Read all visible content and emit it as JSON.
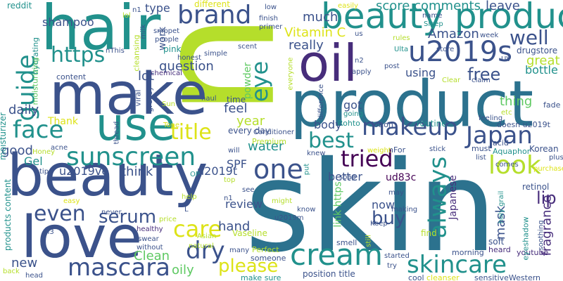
{
  "title": "Word cloud",
  "palette": {
    "lime": "#b5de2b",
    "yellow": "#dde318",
    "green": "#5ec962",
    "teal": "#21918c",
    "blue": "#2c728e",
    "indigo": "#3b528b",
    "purple": "#472d7b",
    "dark": "#440154"
  },
  "words": [
    {
      "text": "skin",
      "color": "#2c728e"
    },
    {
      "text": "n",
      "color": "#b5de2b"
    },
    {
      "text": "product",
      "color": "#2c728e"
    },
    {
      "text": "beauty",
      "color": "#3b528b"
    },
    {
      "text": "make",
      "color": "#3b528b"
    },
    {
      "text": "hair",
      "color": "#21918c"
    },
    {
      "text": "use",
      "color": "#21918c"
    },
    {
      "text": "love",
      "color": "#3b528b"
    },
    {
      "text": "oil",
      "color": "#472d7b"
    },
    {
      "text": "beauty product",
      "color": "#21918c"
    },
    {
      "text": "cream",
      "color": "#21918c"
    },
    {
      "text": "u2019s",
      "color": "#3b528b"
    },
    {
      "text": "sunscreen",
      "color": "#21918c"
    },
    {
      "text": "makeup",
      "color": "#3b528b"
    },
    {
      "text": "skincare",
      "color": "#21918c"
    },
    {
      "text": "mascara",
      "color": "#3b528b"
    },
    {
      "text": "brand",
      "color": "#3b528b"
    },
    {
      "text": "face",
      "color": "#21918c"
    },
    {
      "text": "look",
      "color": "#b5de2b"
    },
    {
      "text": "Japan",
      "color": "#3b528b"
    },
    {
      "text": "one",
      "color": "#3b528b"
    },
    {
      "text": "always",
      "color": "#21918c"
    },
    {
      "text": "tried",
      "color": "#440154"
    },
    {
      "text": "care",
      "color": "#dde318"
    },
    {
      "text": "dry",
      "color": "#3b528b"
    },
    {
      "text": "guide",
      "color": "#21918c"
    },
    {
      "text": "https",
      "color": "#21918c"
    },
    {
      "text": "best",
      "color": "#21918c"
    },
    {
      "text": "title",
      "color": "#dde318"
    },
    {
      "text": "even",
      "color": "#3b528b"
    },
    {
      "text": "serum",
      "color": "#3b528b"
    },
    {
      "text": "eye",
      "color": "#21918c"
    },
    {
      "text": "well",
      "color": "#3b528b"
    },
    {
      "text": "free",
      "color": "#3b528b"
    },
    {
      "text": "please",
      "color": "#dde318"
    },
    {
      "text": "buy",
      "color": "#3b528b"
    },
    {
      "text": "lip",
      "color": "#472d7b"
    },
    {
      "text": "score comments",
      "color": "#21918c"
    },
    {
      "text": "mask",
      "color": "#3b528b"
    },
    {
      "text": "fragrance",
      "color": "#472d7b"
    },
    {
      "text": "Amazon",
      "color": "#3b528b"
    },
    {
      "text": "oily",
      "color": "#5ec962"
    },
    {
      "text": "Clean",
      "color": "#5ec962"
    },
    {
      "text": "new",
      "color": "#3b528b"
    },
    {
      "text": "review",
      "color": "#3b528b"
    },
    {
      "text": "hand",
      "color": "#3b528b"
    },
    {
      "text": "water",
      "color": "#21918c"
    },
    {
      "text": "good",
      "color": "#3b528b"
    },
    {
      "text": "daily",
      "color": "#3b528b"
    },
    {
      "text": "Vitamin C",
      "color": "#dde318"
    },
    {
      "text": "question",
      "color": "#3b528b"
    },
    {
      "text": "lot",
      "color": "#3b528b"
    },
    {
      "text": "much",
      "color": "#3b528b"
    },
    {
      "text": "really",
      "color": "#3b528b"
    },
    {
      "text": "leave",
      "color": "#3b528b"
    },
    {
      "text": "thing",
      "color": "#5ec962"
    },
    {
      "text": "great",
      "color": "#b5de2b"
    },
    {
      "text": "bottle",
      "color": "#21918c"
    },
    {
      "text": "feel",
      "color": "#3b528b"
    },
    {
      "text": "year",
      "color": "#b5de2b"
    },
    {
      "text": "think",
      "color": "#3b528b"
    },
    {
      "text": "u2019ve",
      "color": "#3b528b"
    },
    {
      "text": "u2019t",
      "color": "#3b528b"
    },
    {
      "text": "body",
      "color": "#3b528b"
    },
    {
      "text": "got",
      "color": "#3b528b"
    },
    {
      "text": "better",
      "color": "#3b528b"
    },
    {
      "text": "using",
      "color": "#3b528b"
    },
    {
      "text": "now",
      "color": "#3b528b"
    },
    {
      "text": "Japanese",
      "color": "#472d7b"
    },
    {
      "text": "shampoo",
      "color": "#3b528b"
    },
    {
      "text": "type",
      "color": "#3b528b"
    },
    {
      "text": "Gel",
      "color": "#21918c"
    },
    {
      "text": "SPF",
      "color": "#3b528b"
    },
    {
      "text": "Thank",
      "color": "#dde318"
    },
    {
      "text": "ud83c",
      "color": "#440154"
    },
    {
      "text": "link https",
      "color": "#5ec962"
    },
    {
      "text": "work",
      "color": "#3b528b"
    },
    {
      "text": "powder",
      "color": "#5ec962"
    },
    {
      "text": "every day",
      "color": "#3b528b"
    },
    {
      "text": "time",
      "color": "#3b528b"
    },
    {
      "text": "different",
      "color": "#dde318"
    },
    {
      "text": "reddit",
      "color": "#21918c"
    },
    {
      "text": "pink",
      "color": "#21918c"
    },
    {
      "text": "cleansing",
      "color": "#b5de2b"
    },
    {
      "text": "drugstore",
      "color": "#3b528b"
    },
    {
      "text": "retinol",
      "color": "#3b528b"
    },
    {
      "text": "moisturizer",
      "color": "#21918c"
    },
    {
      "text": "products content",
      "color": "#21918c"
    },
    {
      "text": "position title",
      "color": "#3b528b"
    },
    {
      "text": "Vaseline",
      "color": "#b5de2b"
    },
    {
      "text": "Korean",
      "color": "#3b528b"
    },
    {
      "text": "Premium",
      "color": "#b5de2b"
    },
    {
      "text": "Rohto",
      "color": "#21918c"
    },
    {
      "text": "routine",
      "color": "#21918c"
    },
    {
      "text": "lotion",
      "color": "#3b528b"
    },
    {
      "text": "Aquaphor",
      "color": "#21918c"
    },
    {
      "text": "doesn u2019t",
      "color": "#3b528b"
    },
    {
      "text": "make sure",
      "color": "#21918c"
    },
    {
      "text": "someone",
      "color": "#3b528b"
    },
    {
      "text": "Perfect",
      "color": "#b5de2b"
    },
    {
      "text": "smell",
      "color": "#3b528b"
    },
    {
      "text": "find",
      "color": "#b5de2b"
    },
    {
      "text": "soft",
      "color": "#3b528b"
    },
    {
      "text": "heard",
      "color": "#472d7b"
    },
    {
      "text": "youtube",
      "color": "#472d7b"
    },
    {
      "text": "eyeshadow",
      "color": "#21918c"
    },
    {
      "text": "fade",
      "color": "#3b528b"
    },
    {
      "text": "sensitiveWestern",
      "color": "#3b528b"
    },
    {
      "text": "cleanser",
      "color": "#dde318"
    },
    {
      "text": "cool",
      "color": "#3b528b"
    },
    {
      "text": "morning",
      "color": "#3b528b"
    },
    {
      "text": "holy grail",
      "color": "#21918c"
    },
    {
      "text": "purchase",
      "color": "#dde318"
    },
    {
      "text": "Sleep",
      "color": "#21918c"
    },
    {
      "text": "Ulta",
      "color": "#21918c"
    },
    {
      "text": "nFor",
      "color": "#3b528b"
    },
    {
      "text": "acid",
      "color": "#3b528b"
    },
    {
      "text": "must",
      "color": "#3b528b"
    },
    {
      "text": "plus",
      "color": "#3b528b"
    },
    {
      "text": "stick",
      "color": "#3b528b"
    },
    {
      "text": "weight",
      "color": "#dde318"
    },
    {
      "text": "knew",
      "color": "#3b528b"
    },
    {
      "text": "put",
      "color": "#21918c"
    },
    {
      "text": "going",
      "color": "#21918c"
    },
    {
      "text": "feeling",
      "color": "#3b528b"
    },
    {
      "text": "hydrating",
      "color": "#21918c"
    },
    {
      "text": "moisturizing",
      "color": "#5ec962"
    },
    {
      "text": "content",
      "color": "#3b528b"
    },
    {
      "text": "viral",
      "color": "#3b528b"
    },
    {
      "text": "greasy",
      "color": "#3b528b"
    },
    {
      "text": "thread",
      "color": "#3b528b"
    },
    {
      "text": "Tone",
      "color": "#dde318"
    },
    {
      "text": "Sun",
      "color": "#b5de2b"
    },
    {
      "text": "Honey",
      "color": "#b5de2b"
    },
    {
      "text": "acne",
      "color": "#3b528b"
    },
    {
      "text": "tip",
      "color": "#3b528b"
    },
    {
      "text": "OP",
      "color": "#21918c"
    },
    {
      "text": "help",
      "color": "#b5de2b"
    },
    {
      "text": "easy",
      "color": "#dde318"
    },
    {
      "text": "never",
      "color": "#3b528b"
    },
    {
      "text": "healthy",
      "color": "#472d7b"
    },
    {
      "text": "price",
      "color": "#b5de2b"
    },
    {
      "text": "swear",
      "color": "#3b528b"
    },
    {
      "text": "without",
      "color": "#3b528b"
    },
    {
      "text": "natural",
      "color": "#b5de2b"
    },
    {
      "text": "many",
      "color": "#3b528b"
    },
    {
      "text": "head",
      "color": "#3b528b"
    },
    {
      "text": "back",
      "color": "#b5de2b"
    },
    {
      "text": "n3",
      "color": "#3b528b"
    },
    {
      "text": "Asian",
      "color": "#b5de2b"
    },
    {
      "text": "Conditioner",
      "color": "#3b528b"
    },
    {
      "text": "haul",
      "color": "#3b528b"
    },
    {
      "text": "simple",
      "color": "#3b528b"
    },
    {
      "text": "chemical",
      "color": "#472d7b"
    },
    {
      "text": "honest",
      "color": "#3b528b"
    },
    {
      "text": "people",
      "color": "#3b528b"
    },
    {
      "text": "snippet",
      "color": "#3b528b"
    },
    {
      "text": "milk",
      "color": "#3b528b"
    },
    {
      "text": "lol",
      "color": "#b5de2b"
    },
    {
      "text": "n1",
      "color": "#3b528b"
    },
    {
      "text": "nThis",
      "color": "#3b528b"
    },
    {
      "text": "scent",
      "color": "#3b528b"
    },
    {
      "text": "everyone",
      "color": "#b5de2b"
    },
    {
      "text": "difference",
      "color": "#3b528b"
    },
    {
      "text": "primer",
      "color": "#3b528b"
    },
    {
      "text": "finish",
      "color": "#3b528b"
    },
    {
      "text": "low",
      "color": "#3b528b"
    },
    {
      "text": "easily",
      "color": "#dde318"
    },
    {
      "text": "us",
      "color": "#3b528b"
    },
    {
      "text": "n2",
      "color": "#3b528b"
    },
    {
      "text": "apply",
      "color": "#3b528b"
    },
    {
      "text": "post",
      "color": "#3b528b"
    },
    {
      "text": "rules",
      "color": "#b5de2b"
    },
    {
      "text": "name",
      "color": "#3b528b"
    },
    {
      "text": "store",
      "color": "#3b528b"
    },
    {
      "text": "week",
      "color": "#3b528b"
    },
    {
      "text": "UV",
      "color": "#3b528b"
    },
    {
      "text": "claim",
      "color": "#3b528b"
    },
    {
      "text": "Clear",
      "color": "#b5de2b"
    },
    {
      "text": "etc",
      "color": "#b5de2b"
    },
    {
      "text": "comes",
      "color": "#3b528b"
    },
    {
      "text": "list",
      "color": "#3b528b"
    },
    {
      "text": "may",
      "color": "#3b528b"
    },
    {
      "text": "making",
      "color": "#3b528b"
    },
    {
      "text": "Keep",
      "color": "#3b528b"
    },
    {
      "text": "still",
      "color": "#b5de2b"
    },
    {
      "text": "started",
      "color": "#3b528b"
    },
    {
      "text": "try",
      "color": "#3b528b"
    },
    {
      "text": "u2019m",
      "color": "#3b528b"
    },
    {
      "text": "might",
      "color": "#b5de2b"
    },
    {
      "text": "know",
      "color": "#3b528b"
    },
    {
      "text": "will",
      "color": "#3b528b"
    },
    {
      "text": "n1",
      "color": "#3b528b"
    },
    {
      "text": "see",
      "color": "#3b528b"
    },
    {
      "text": "soothing",
      "color": "#3b528b"
    },
    {
      "text": "soap",
      "color": "#3b528b"
    },
    {
      "text": "top",
      "color": "#b5de2b"
    },
    {
      "text": "L",
      "color": "#3b528b"
    }
  ]
}
